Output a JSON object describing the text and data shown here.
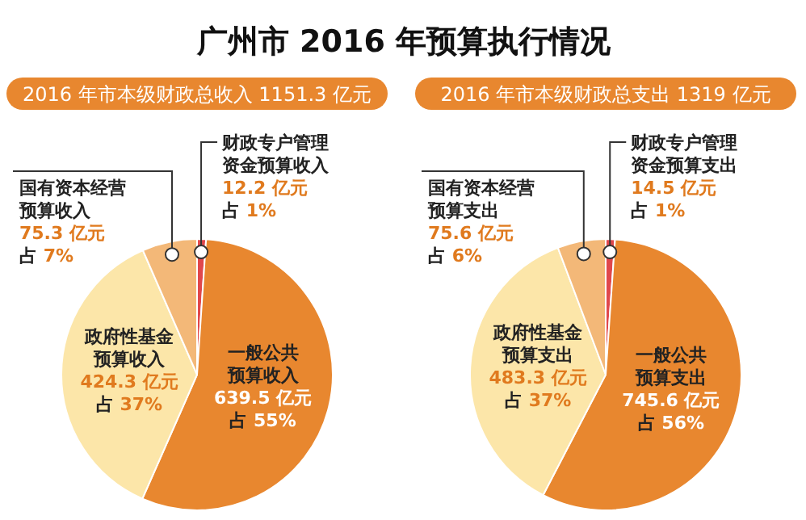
{
  "chart_data": [
    {
      "type": "pie",
      "title": "广州市 2016 年预算执行情况",
      "subtitle": "2016 年市本级财政总收入 1151.3 亿元",
      "categories": [
        "财政专户管理资金预算收入",
        "一般公共预算收入",
        "政府性基金预算收入",
        "国有资本经营预算收入"
      ],
      "values": [
        12.2,
        639.5,
        424.3,
        75.3
      ],
      "value_labels": [
        "12.2 亿元占 1%",
        "639.5 亿元占 55%",
        "424.3 亿元占 37%",
        "75.3 亿元占 7%"
      ],
      "colors": [
        "#e0474c",
        "#e8872f",
        "#fce6a9",
        "#f3b878"
      ]
    },
    {
      "type": "pie",
      "subtitle": "2016 年市本级财政总支出 1319 亿元",
      "categories": [
        "财政专户管理资金预算支出",
        "一般公共预算支出",
        "政府性基金预算支出",
        "国有资本经营预算支出"
      ],
      "values": [
        14.5,
        745.6,
        483.3,
        75.6
      ],
      "value_labels": [
        "14.5 亿元占 1%",
        "745.6 亿元占 56%",
        "483.3 亿元占 37%",
        "75.6 亿元占 6%"
      ],
      "colors": [
        "#e0474c",
        "#e8872f",
        "#fce6a9",
        "#f3b878"
      ]
    }
  ]
}
